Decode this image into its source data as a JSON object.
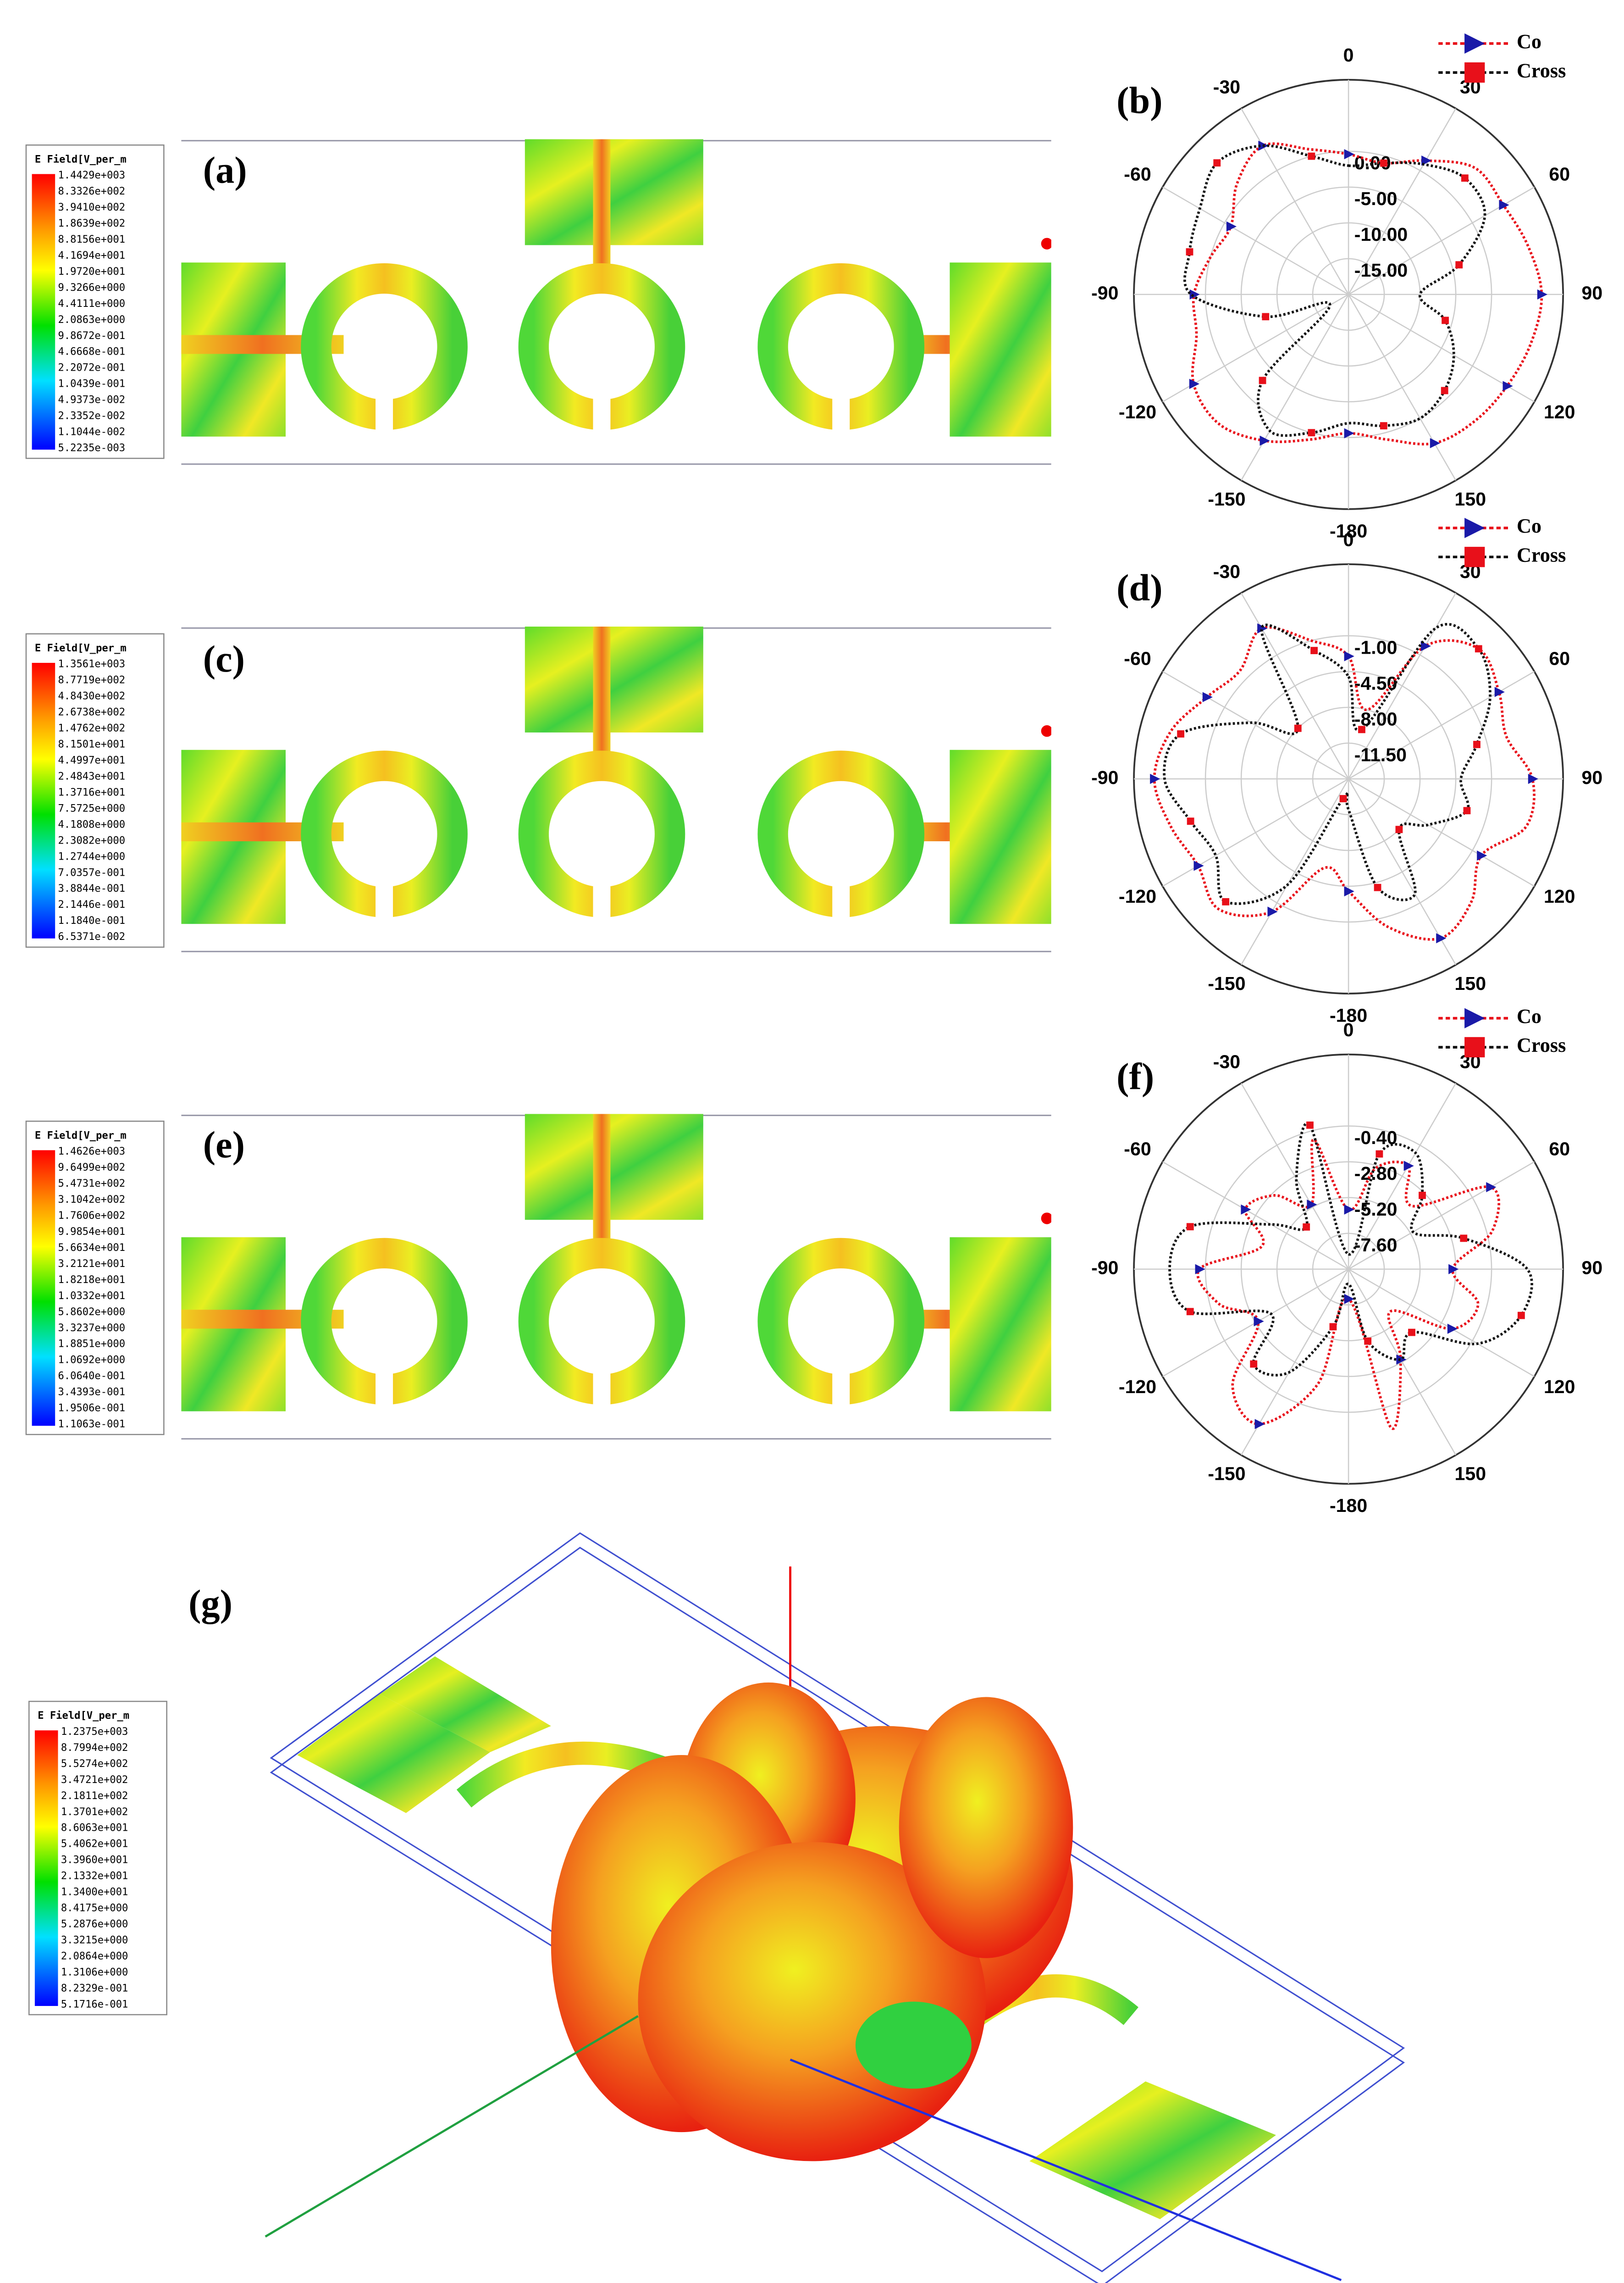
{
  "panel_labels": [
    "(a)",
    "(b)",
    "(c)",
    "(d)",
    "(e)",
    "(f)",
    "(g)"
  ],
  "colorbars": [
    {
      "title": "E Field[V_per_m",
      "labels": [
        "1.4429e+003",
        "8.3326e+002",
        "3.9410e+002",
        "1.8639e+002",
        "8.8156e+001",
        "4.1694e+001",
        "1.9720e+001",
        "9.3266e+000",
        "4.4111e+000",
        "2.0863e+000",
        "9.8672e-001",
        "4.6668e-001",
        "2.2072e-001",
        "1.0439e-001",
        "4.9373e-002",
        "2.3352e-002",
        "1.1044e-002",
        "5.2235e-003"
      ]
    },
    {
      "title": "E Field[V_per_m",
      "labels": [
        "1.3561e+003",
        "8.7719e+002",
        "4.8430e+002",
        "2.6738e+002",
        "1.4762e+002",
        "8.1501e+001",
        "4.4997e+001",
        "2.4843e+001",
        "1.3716e+001",
        "7.5725e+000",
        "4.1808e+000",
        "2.3082e+000",
        "1.2744e+000",
        "7.0357e-001",
        "3.8844e-001",
        "2.1446e-001",
        "1.1840e-001",
        "6.5371e-002"
      ]
    },
    {
      "title": "E Field[V_per_m",
      "labels": [
        "1.4626e+003",
        "9.6499e+002",
        "5.4731e+002",
        "3.1042e+002",
        "1.7606e+002",
        "9.9854e+001",
        "5.6634e+001",
        "3.2121e+001",
        "1.8218e+001",
        "1.0332e+001",
        "5.8602e+000",
        "3.3237e+000",
        "1.8851e+000",
        "1.0692e+000",
        "6.0640e-001",
        "3.4393e-001",
        "1.9506e-001",
        "1.1063e-001"
      ]
    },
    {
      "title": "E Field[V_per_m",
      "labels": [
        "1.2375e+003",
        "8.7994e+002",
        "5.5274e+002",
        "3.4721e+002",
        "2.1811e+002",
        "1.3701e+002",
        "8.6063e+001",
        "5.4062e+001",
        "3.3960e+001",
        "2.1332e+001",
        "1.3400e+001",
        "8.4175e+000",
        "5.2876e+000",
        "3.3215e+000",
        "2.0864e+000",
        "1.3106e+000",
        "8.2329e-001",
        "5.1716e-001"
      ]
    }
  ],
  "chart_data": [
    {
      "type": "polar",
      "theta": [
        0,
        15,
        30,
        45,
        60,
        75,
        90,
        105,
        120,
        135,
        150,
        165,
        180,
        195,
        210,
        225,
        240,
        255,
        270,
        285,
        300,
        315,
        330,
        345
      ],
      "thetaticks": [
        0,
        30,
        60,
        90,
        120,
        150,
        -180,
        -150,
        -120,
        -90,
        -60,
        -30
      ],
      "rlim": [
        -20,
        10
      ],
      "rticks": [
        {
          "value": 0,
          "label": "0.00"
        },
        {
          "value": -5,
          "label": "-5.00"
        },
        {
          "value": -10,
          "label": "-10.00"
        },
        {
          "value": -15,
          "label": "-15.00"
        }
      ],
      "series": [
        {
          "name": "Co",
          "color": "#e8101a",
          "marker_color": "#1a1aa8",
          "values": [
            -0.4,
            -1,
            1.6,
            5,
            5,
            6,
            7,
            6.4,
            5.6,
            5,
            4,
            1,
            -0.6,
            1,
            3.6,
            5.6,
            5,
            2,
            1.6,
            0,
            -1,
            2,
            4,
            1
          ]
        },
        {
          "name": "Cross",
          "color": "#111111",
          "marker_color": "#e8101a",
          "values": [
            -2,
            -1,
            1,
            3,
            2,
            -4,
            -10,
            -6,
            -3,
            -1,
            0,
            -1,
            -2,
            0,
            2,
            -3,
            -17,
            -8,
            2,
            3,
            4,
            6,
            4,
            0
          ]
        }
      ]
    },
    {
      "type": "polar",
      "theta": [
        0,
        15,
        30,
        45,
        60,
        75,
        90,
        105,
        120,
        135,
        150,
        165,
        180,
        195,
        210,
        225,
        240,
        255,
        270,
        285,
        300,
        315,
        330,
        345
      ],
      "thetaticks": [
        0,
        30,
        60,
        90,
        120,
        150,
        -180,
        -150,
        -120,
        -90,
        -60,
        -30
      ],
      "rlim": [
        -15,
        6
      ],
      "rticks": [
        {
          "value": -1,
          "label": "-1.00"
        },
        {
          "value": -4.5,
          "label": "-4.50"
        },
        {
          "value": -8,
          "label": "-8.00"
        },
        {
          "value": -11.5,
          "label": "-11.50"
        }
      ],
      "series": [
        {
          "name": "Co",
          "color": "#e8101a",
          "marker_color": "#1a1aa8",
          "values": [
            -3,
            -8,
            0,
            3,
            2,
            1,
            3,
            3,
            0,
            2,
            3,
            0,
            -4,
            -6,
            0,
            3,
            2,
            3,
            4,
            3,
            1,
            0,
            2,
            -1
          ]
        },
        {
          "name": "Cross",
          "color": "#111111",
          "marker_color": "#e8101a",
          "values": [
            -5,
            -10,
            2,
            3,
            1,
            -2,
            -4,
            -3,
            -6,
            -8,
            -2,
            -4,
            -12,
            -13,
            -3,
            2,
            0,
            1,
            3,
            2,
            -4,
            -8,
            2,
            -2
          ]
        }
      ]
    },
    {
      "type": "polar",
      "theta": [
        0,
        15,
        30,
        45,
        60,
        75,
        90,
        105,
        120,
        135,
        150,
        165,
        180,
        195,
        210,
        225,
        240,
        255,
        270,
        285,
        300,
        315,
        330,
        345
      ],
      "thetaticks": [
        0,
        30,
        60,
        90,
        120,
        150,
        -180,
        -150,
        -120,
        -90,
        -60,
        -30
      ],
      "rlim": [
        -10,
        4.4
      ],
      "rticks": [
        {
          "value": -0.4,
          "label": "-0.40"
        },
        {
          "value": -2.8,
          "label": "-2.80"
        },
        {
          "value": -5.2,
          "label": "-5.20"
        },
        {
          "value": -7.6,
          "label": "-7.60"
        }
      ],
      "series": [
        {
          "name": "Co",
          "color": "#e8101a",
          "marker_color": "#1a1aa8",
          "values": [
            -6,
            -3,
            -2,
            -4,
            1,
            0,
            -3,
            -1,
            -2,
            -6,
            -3,
            1,
            -8,
            -2,
            2,
            1,
            -3,
            -1,
            0,
            -4,
            -2,
            -3,
            -5,
            -1
          ]
        },
        {
          "name": "Cross",
          "color": "#111111",
          "marker_color": "#e8101a",
          "values": [
            -9,
            -2,
            -1,
            -3,
            -5,
            -2,
            2,
            2,
            0,
            -4,
            -3,
            -5,
            -9,
            -6,
            -2,
            -1,
            -4,
            1,
            2,
            1,
            -4,
            -6,
            -3,
            0
          ]
        }
      ]
    }
  ]
}
